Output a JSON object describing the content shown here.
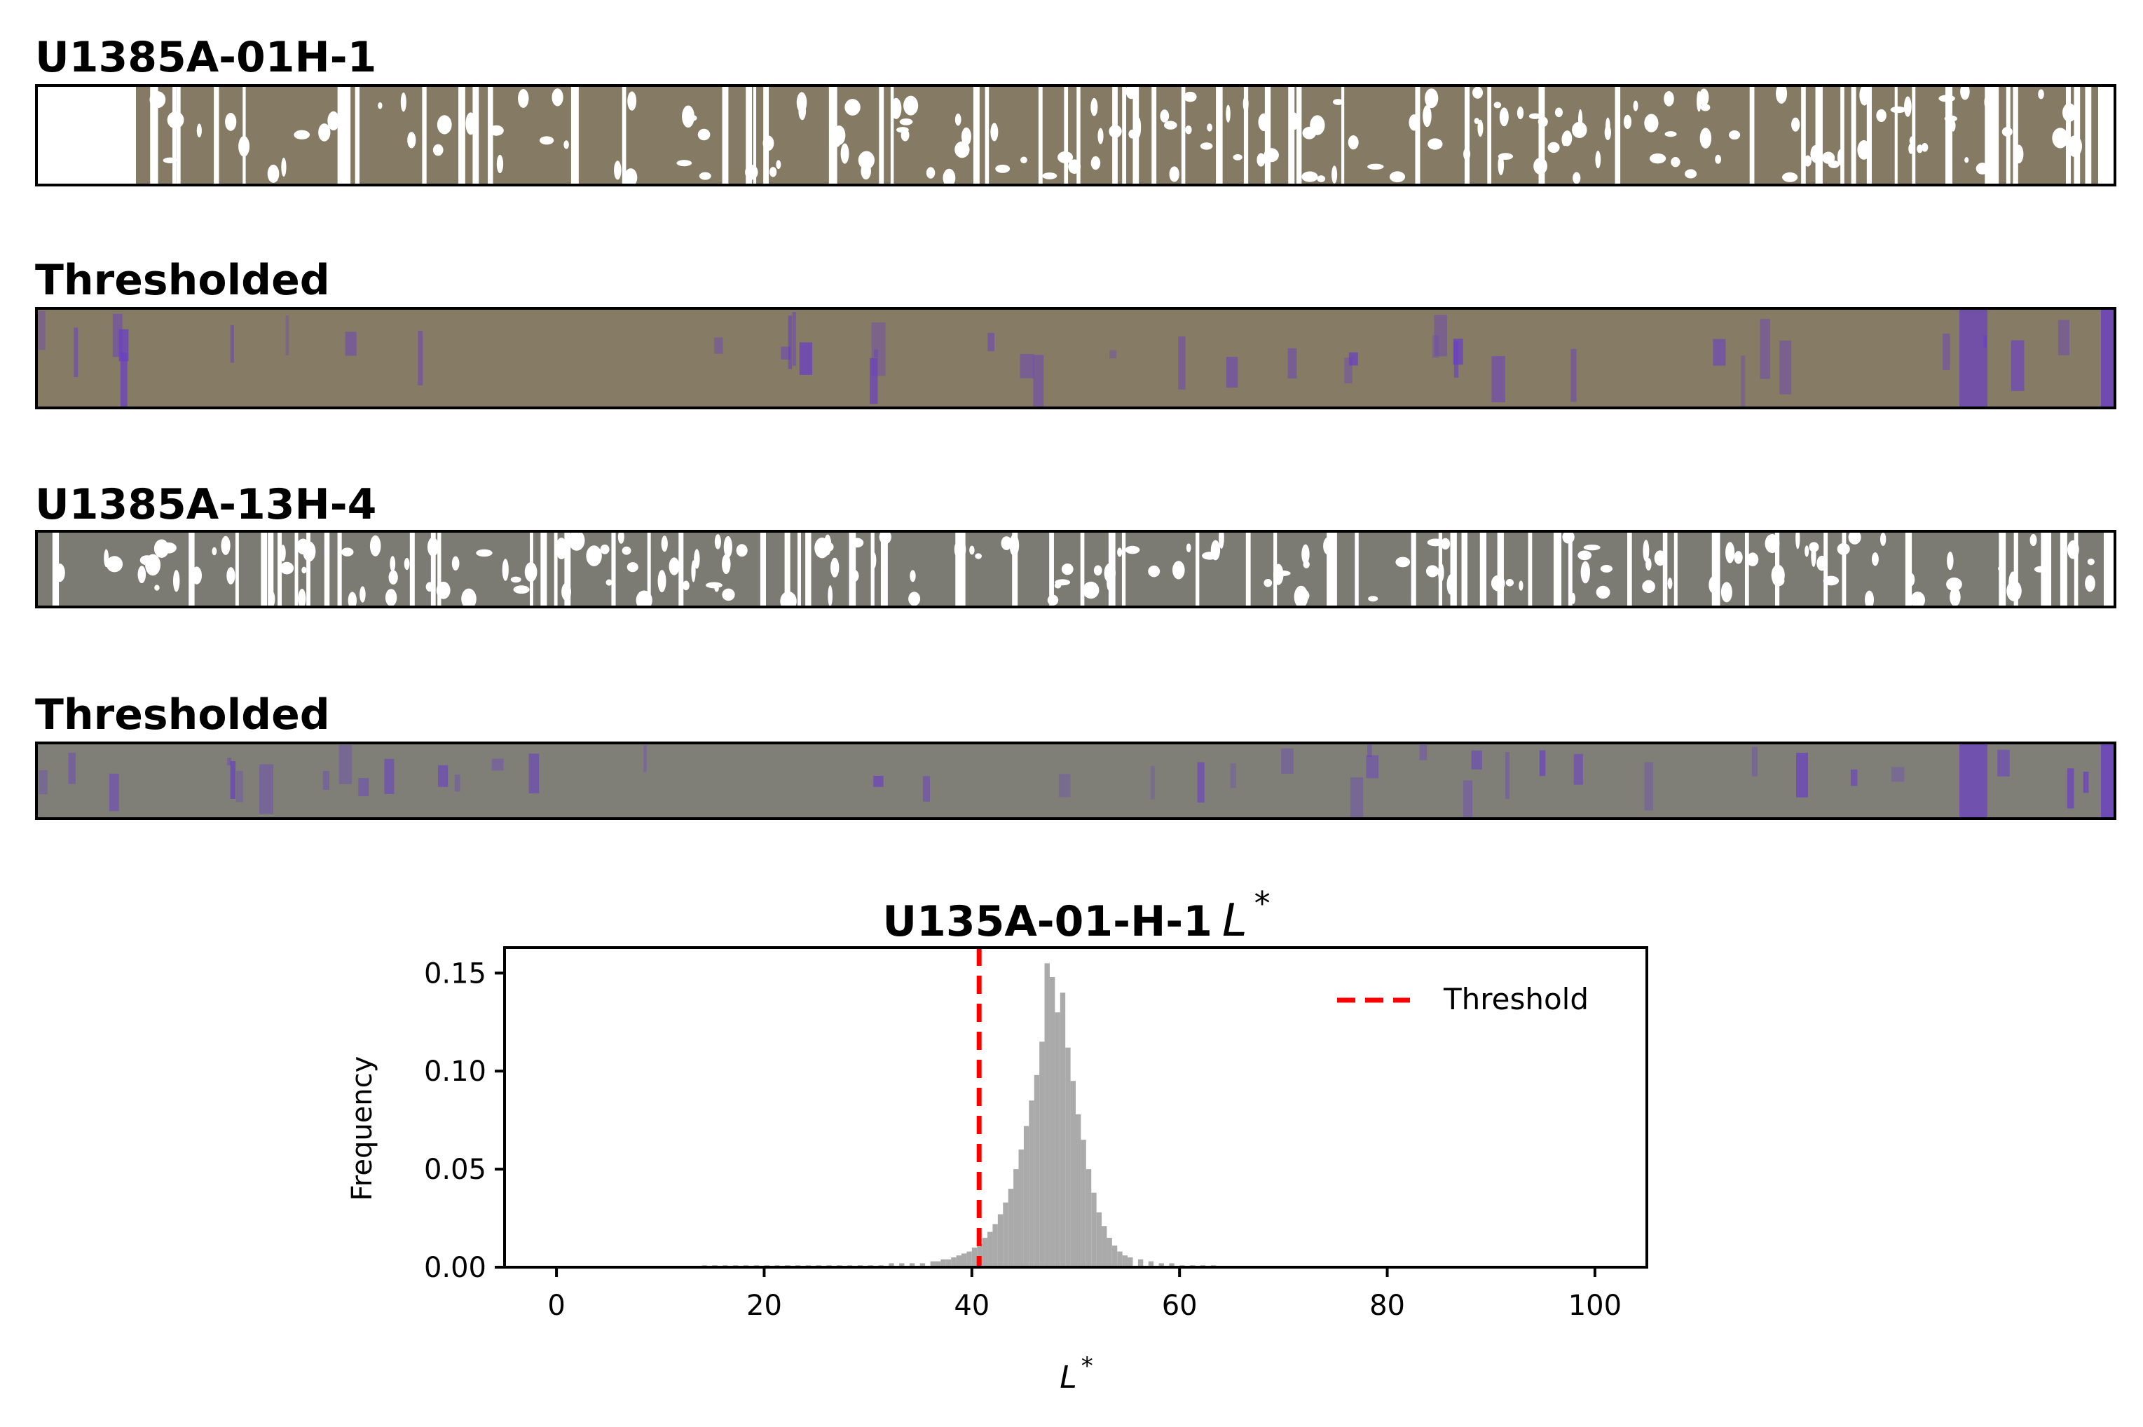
{
  "panels": [
    {
      "title": "U1385A-01H-1",
      "kind": "original",
      "core_color": "#857a63"
    },
    {
      "title": "Thresholded",
      "kind": "thresholded",
      "core_color": "#867b64",
      "highlight_color": "#6a3fc4"
    },
    {
      "title": "U1385A-13H-4",
      "kind": "original",
      "core_color": "#7b7b74"
    },
    {
      "title": "Thresholded",
      "kind": "thresholded",
      "core_color": "#7f7f78",
      "highlight_color": "#6a3fc4"
    }
  ],
  "chart_data": {
    "type": "bar",
    "title": "U135A-01-H-1",
    "title_symbol": "L",
    "title_symbol_sup": "*",
    "xlabel": "L",
    "xlabel_sup": "*",
    "ylabel": "Frequency",
    "xlim": [
      -5,
      105
    ],
    "ylim": [
      0,
      0.163
    ],
    "xticks": [
      0,
      20,
      40,
      60,
      80,
      100
    ],
    "yticks": [
      "0.00",
      "0.05",
      "0.10",
      "0.15"
    ],
    "bar_color": "#aaaaaa",
    "threshold": {
      "name": "Threshold",
      "x": 40.7,
      "color": "#ff0000"
    },
    "legend": {
      "position": "top-right",
      "entries": [
        "Threshold"
      ]
    },
    "bin_width": 0.5,
    "bins": [
      [
        14,
        0.001
      ],
      [
        15,
        0.001
      ],
      [
        16,
        0.001
      ],
      [
        17,
        0.001
      ],
      [
        18,
        0.001
      ],
      [
        19,
        0.001
      ],
      [
        20,
        0.001
      ],
      [
        21,
        0.001
      ],
      [
        22,
        0.001
      ],
      [
        23,
        0.001
      ],
      [
        24,
        0.001
      ],
      [
        25,
        0.001
      ],
      [
        26,
        0.001
      ],
      [
        27,
        0.001
      ],
      [
        28,
        0.001
      ],
      [
        29,
        0.001
      ],
      [
        30,
        0.001
      ],
      [
        31,
        0.001
      ],
      [
        32,
        0.002
      ],
      [
        33,
        0.002
      ],
      [
        34,
        0.002
      ],
      [
        35,
        0.002
      ],
      [
        36,
        0.003
      ],
      [
        36.5,
        0.003
      ],
      [
        37,
        0.004
      ],
      [
        37.5,
        0.004
      ],
      [
        38,
        0.005
      ],
      [
        38.5,
        0.006
      ],
      [
        39,
        0.007
      ],
      [
        39.5,
        0.008
      ],
      [
        40,
        0.01
      ],
      [
        40.5,
        0.012
      ],
      [
        41,
        0.015
      ],
      [
        41.5,
        0.018
      ],
      [
        42,
        0.022
      ],
      [
        42.5,
        0.027
      ],
      [
        43,
        0.033
      ],
      [
        43.5,
        0.04
      ],
      [
        44,
        0.05
      ],
      [
        44.5,
        0.06
      ],
      [
        45,
        0.072
      ],
      [
        45.5,
        0.085
      ],
      [
        46,
        0.098
      ],
      [
        46.5,
        0.115
      ],
      [
        47,
        0.155
      ],
      [
        47.5,
        0.148
      ],
      [
        48,
        0.13
      ],
      [
        48.5,
        0.14
      ],
      [
        49,
        0.112
      ],
      [
        49.5,
        0.095
      ],
      [
        50,
        0.078
      ],
      [
        50.5,
        0.065
      ],
      [
        51,
        0.05
      ],
      [
        51.5,
        0.038
      ],
      [
        52,
        0.028
      ],
      [
        52.5,
        0.021
      ],
      [
        53,
        0.015
      ],
      [
        53.5,
        0.011
      ],
      [
        54,
        0.008
      ],
      [
        54.5,
        0.006
      ],
      [
        55,
        0.005
      ],
      [
        56,
        0.004
      ],
      [
        57,
        0.003
      ],
      [
        58,
        0.002
      ],
      [
        59,
        0.002
      ],
      [
        60,
        0.001
      ],
      [
        61,
        0.001
      ],
      [
        62,
        0.001
      ],
      [
        63,
        0.001
      ]
    ]
  }
}
